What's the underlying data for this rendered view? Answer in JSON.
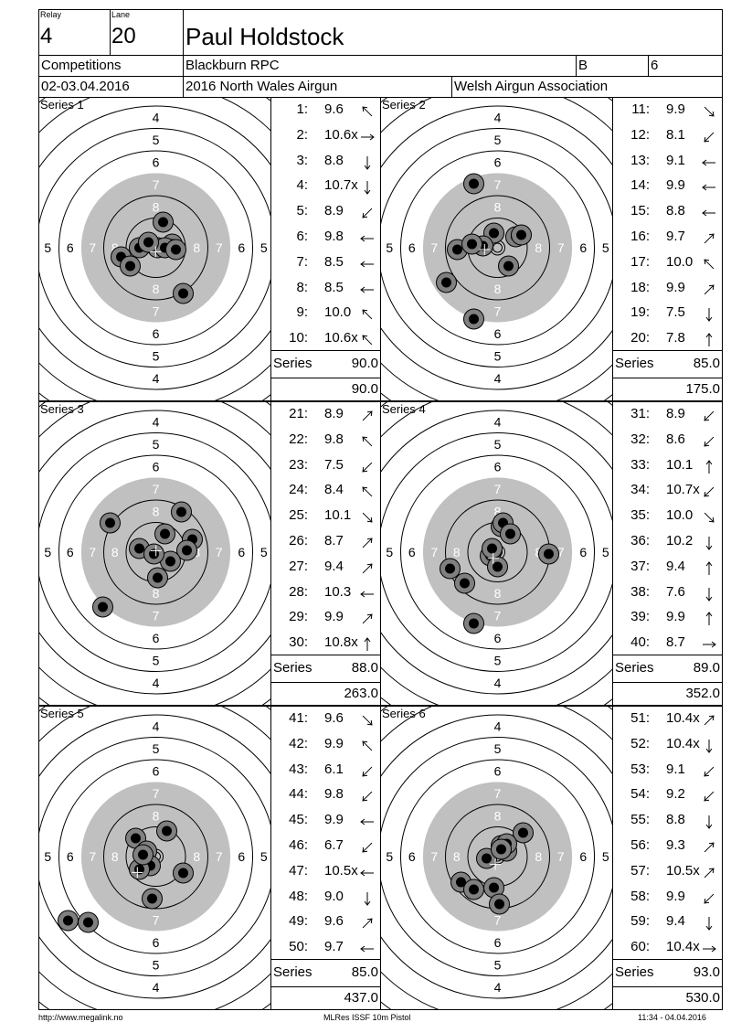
{
  "header": {
    "relay_label": "Relay",
    "relay": "4",
    "lane_label": "Lane",
    "lane": "20",
    "shooter": "Paul Holdstock",
    "category": "Competitions",
    "club": "Blackburn RPC",
    "class": "B",
    "class_num": "6",
    "date": "02-03.04.2016",
    "event": "2016 North Wales Airgun",
    "organizer": "Welsh Airgun Association"
  },
  "series_label": "Series",
  "series": [
    {
      "title": "Series 1",
      "total": "90.0",
      "cumulative": "90.0",
      "shots": [
        {
          "n": "1:",
          "v": "9.6",
          "dir": "nw"
        },
        {
          "n": "2:",
          "v": "10.6x",
          "dir": "e"
        },
        {
          "n": "3:",
          "v": "8.8",
          "dir": "s"
        },
        {
          "n": "4:",
          "v": "10.7x",
          "dir": "s"
        },
        {
          "n": "5:",
          "v": "8.9",
          "dir": "sw"
        },
        {
          "n": "6:",
          "v": "9.8",
          "dir": "w"
        },
        {
          "n": "7:",
          "v": "8.5",
          "dir": "w"
        },
        {
          "n": "8:",
          "v": "8.5",
          "dir": "w"
        },
        {
          "n": "9:",
          "v": "10.0",
          "dir": "nw"
        },
        {
          "n": "10:",
          "v": "10.6x",
          "dir": "nw"
        }
      ]
    },
    {
      "title": "Series 2",
      "total": "85.0",
      "cumulative": "175.0",
      "shots": [
        {
          "n": "11:",
          "v": "9.9",
          "dir": "se"
        },
        {
          "n": "12:",
          "v": "8.1",
          "dir": "sw"
        },
        {
          "n": "13:",
          "v": "9.1",
          "dir": "w"
        },
        {
          "n": "14:",
          "v": "9.9",
          "dir": "w"
        },
        {
          "n": "15:",
          "v": "8.8",
          "dir": "w"
        },
        {
          "n": "16:",
          "v": "9.7",
          "dir": "ne"
        },
        {
          "n": "17:",
          "v": "10.0",
          "dir": "nw"
        },
        {
          "n": "18:",
          "v": "9.9",
          "dir": "ne"
        },
        {
          "n": "19:",
          "v": "7.5",
          "dir": "s"
        },
        {
          "n": "20:",
          "v": "7.8",
          "dir": "n"
        }
      ]
    },
    {
      "title": "Series 3",
      "total": "88.0",
      "cumulative": "263.0",
      "shots": [
        {
          "n": "21:",
          "v": "8.9",
          "dir": "ne"
        },
        {
          "n": "22:",
          "v": "9.8",
          "dir": "nw"
        },
        {
          "n": "23:",
          "v": "7.5",
          "dir": "sw"
        },
        {
          "n": "24:",
          "v": "8.4",
          "dir": "nw"
        },
        {
          "n": "25:",
          "v": "10.1",
          "dir": "se"
        },
        {
          "n": "26:",
          "v": "8.7",
          "dir": "ne"
        },
        {
          "n": "27:",
          "v": "9.4",
          "dir": "ne"
        },
        {
          "n": "28:",
          "v": "10.3",
          "dir": "w"
        },
        {
          "n": "29:",
          "v": "9.9",
          "dir": "ne"
        },
        {
          "n": "30:",
          "v": "10.8x",
          "dir": "n"
        }
      ]
    },
    {
      "title": "Series 4",
      "total": "89.0",
      "cumulative": "352.0",
      "shots": [
        {
          "n": "31:",
          "v": "8.9",
          "dir": "sw"
        },
        {
          "n": "32:",
          "v": "8.6",
          "dir": "sw"
        },
        {
          "n": "33:",
          "v": "10.1",
          "dir": "n"
        },
        {
          "n": "34:",
          "v": "10.7x",
          "dir": "sw"
        },
        {
          "n": "35:",
          "v": "10.0",
          "dir": "se"
        },
        {
          "n": "36:",
          "v": "10.2",
          "dir": "s"
        },
        {
          "n": "37:",
          "v": "9.4",
          "dir": "n"
        },
        {
          "n": "38:",
          "v": "7.6",
          "dir": "s"
        },
        {
          "n": "39:",
          "v": "9.9",
          "dir": "n"
        },
        {
          "n": "40:",
          "v": "8.7",
          "dir": "e"
        }
      ]
    },
    {
      "title": "Series 5",
      "total": "85.0",
      "cumulative": "437.0",
      "shots": [
        {
          "n": "41:",
          "v": "9.6",
          "dir": "se"
        },
        {
          "n": "42:",
          "v": "9.9",
          "dir": "nw"
        },
        {
          "n": "43:",
          "v": "6.1",
          "dir": "sw"
        },
        {
          "n": "44:",
          "v": "9.8",
          "dir": "sw"
        },
        {
          "n": "45:",
          "v": "9.9",
          "dir": "w"
        },
        {
          "n": "46:",
          "v": "6.7",
          "dir": "sw"
        },
        {
          "n": "47:",
          "v": "10.5x",
          "dir": "w"
        },
        {
          "n": "48:",
          "v": "9.0",
          "dir": "s"
        },
        {
          "n": "49:",
          "v": "9.6",
          "dir": "ne"
        },
        {
          "n": "50:",
          "v": "9.7",
          "dir": "w"
        }
      ]
    },
    {
      "title": "Series 6",
      "total": "93.0",
      "cumulative": "530.0",
      "shots": [
        {
          "n": "51:",
          "v": "10.4x",
          "dir": "ne"
        },
        {
          "n": "52:",
          "v": "10.4x",
          "dir": "s"
        },
        {
          "n": "53:",
          "v": "9.1",
          "dir": "sw"
        },
        {
          "n": "54:",
          "v": "9.2",
          "dir": "sw"
        },
        {
          "n": "55:",
          "v": "8.8",
          "dir": "s"
        },
        {
          "n": "56:",
          "v": "9.3",
          "dir": "ne"
        },
        {
          "n": "57:",
          "v": "10.5x",
          "dir": "ne"
        },
        {
          "n": "58:",
          "v": "9.9",
          "dir": "sw"
        },
        {
          "n": "59:",
          "v": "9.4",
          "dir": "s"
        },
        {
          "n": "60:",
          "v": "10.4x",
          "dir": "e"
        }
      ]
    }
  ],
  "footer": {
    "url": "http://www.megalink.no",
    "software": "MLRes ISSF 10m Pistol",
    "timestamp": "11:34 - 04.04.2016"
  }
}
